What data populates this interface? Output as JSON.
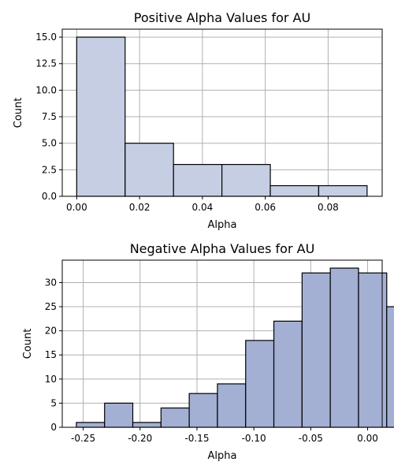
{
  "chart_data": [
    {
      "type": "bar",
      "title": "Positive Alpha Values for AU",
      "xlabel": "Alpha",
      "ylabel": "Count",
      "xlim": [
        -0.0046,
        0.0972
      ],
      "ylim": [
        0,
        15.75
      ],
      "xticks": [
        0.0,
        0.02,
        0.04,
        0.06,
        0.08
      ],
      "xtick_labels": [
        "0.00",
        "0.02",
        "0.04",
        "0.06",
        "0.08"
      ],
      "yticks": [
        0.0,
        2.5,
        5.0,
        7.5,
        10.0,
        12.5,
        15.0
      ],
      "ytick_labels": [
        "0.0",
        "2.5",
        "5.0",
        "7.5",
        "10.0",
        "12.5",
        "15.0"
      ],
      "grid": true,
      "bar_color": "#c5cee3",
      "bins": [
        {
          "x0": 0.0,
          "x1": 0.0154,
          "count": 15
        },
        {
          "x0": 0.0154,
          "x1": 0.0308,
          "count": 5
        },
        {
          "x0": 0.0308,
          "x1": 0.0462,
          "count": 3
        },
        {
          "x0": 0.0462,
          "x1": 0.0616,
          "count": 3
        },
        {
          "x0": 0.0616,
          "x1": 0.077,
          "count": 1
        },
        {
          "x0": 0.077,
          "x1": 0.0924,
          "count": 1
        }
      ]
    },
    {
      "type": "bar",
      "title": "Negative Alpha Values for AU",
      "xlabel": "Alpha",
      "ylabel": "Count",
      "xlim": [
        -0.2684,
        0.0128
      ],
      "ylim": [
        0,
        34.65
      ],
      "xticks": [
        -0.25,
        -0.2,
        -0.15,
        -0.1,
        -0.05,
        0.0
      ],
      "xtick_labels": [
        "-0.25",
        "-0.20",
        "-0.15",
        "-0.10",
        "-0.05",
        "0.00"
      ],
      "yticks": [
        0,
        5,
        10,
        15,
        20,
        25,
        30
      ],
      "ytick_labels": [
        "0",
        "5",
        "10",
        "15",
        "20",
        "25",
        "30"
      ],
      "grid": true,
      "bar_color": "#a3b0d4",
      "bins": [
        {
          "x0": -0.256,
          "x1": -0.2327,
          "count": 1
        },
        {
          "x0": -0.2327,
          "x1": -0.2094,
          "count": 5
        },
        {
          "x0": -0.2094,
          "x1": -0.1861,
          "count": 1
        },
        {
          "x0": -0.1861,
          "x1": -0.1628,
          "count": 4
        },
        {
          "x0": -0.1628,
          "x1": -0.1395,
          "count": 7
        },
        {
          "x0": -0.1395,
          "x1": -0.1162,
          "count": 9
        },
        {
          "x0": -0.1162,
          "x1": -0.0929,
          "count": 18
        },
        {
          "x0": -0.0929,
          "x1": -0.0696,
          "count": 22
        },
        {
          "x0": -0.0696,
          "x1": -0.0463,
          "count": 32
        },
        {
          "x0": -0.0463,
          "x1": -0.023,
          "count": 33
        },
        {
          "x0": -0.023,
          "x1": 0.0,
          "count": 32
        },
        {
          "x0": 0.0,
          "x1": 0.0,
          "count": 25
        }
      ]
    }
  ]
}
